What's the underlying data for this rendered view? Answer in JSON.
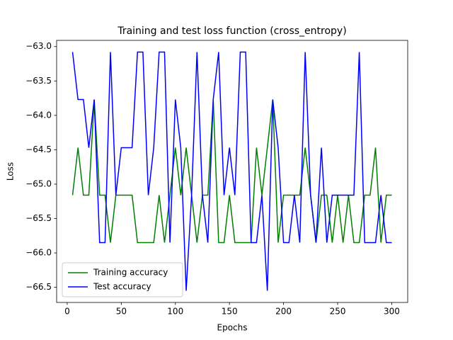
{
  "chart_data": {
    "type": "line",
    "title": "Training and test loss function (cross_entropy)",
    "x_label": "Epochs",
    "y_label": "Loss",
    "x": [
      5,
      10,
      15,
      20,
      25,
      30,
      35,
      40,
      45,
      50,
      55,
      60,
      65,
      70,
      75,
      80,
      85,
      90,
      95,
      100,
      105,
      110,
      115,
      120,
      125,
      130,
      135,
      140,
      145,
      150,
      155,
      160,
      165,
      170,
      175,
      180,
      185,
      190,
      195,
      200,
      205,
      210,
      215,
      220,
      225,
      230,
      235,
      240,
      245,
      250,
      255,
      260,
      265,
      270,
      275,
      280,
      285,
      290,
      295,
      300
    ],
    "series": [
      {
        "name": "Training accuracy",
        "color": "#008000",
        "values": [
          -65.16,
          -64.47,
          -65.16,
          -65.16,
          -63.77,
          -65.16,
          -65.16,
          -65.85,
          -65.16,
          -65.16,
          -65.16,
          -65.16,
          -65.85,
          -65.85,
          -65.85,
          -65.85,
          -65.16,
          -65.85,
          -65.16,
          -64.47,
          -65.16,
          -64.47,
          -65.16,
          -65.85,
          -65.16,
          -65.16,
          -63.77,
          -65.85,
          -65.85,
          -65.16,
          -65.85,
          -65.85,
          -65.85,
          -65.85,
          -64.47,
          -65.16,
          -64.47,
          -63.77,
          -65.85,
          -65.16,
          -65.16,
          -65.16,
          -65.16,
          -64.47,
          -65.16,
          -65.85,
          -65.16,
          -65.16,
          -65.85,
          -65.16,
          -65.85,
          -65.16,
          -65.85,
          -65.85,
          -65.16,
          -65.16,
          -64.47,
          -65.85,
          -65.16,
          -65.16
        ]
      },
      {
        "name": "Test accuracy",
        "color": "#0000ff",
        "values": [
          -63.08,
          -63.77,
          -63.77,
          -64.47,
          -63.77,
          -65.85,
          -65.85,
          -63.08,
          -65.16,
          -64.47,
          -64.47,
          -64.47,
          -63.08,
          -63.08,
          -65.16,
          -64.47,
          -63.08,
          -63.08,
          -65.85,
          -63.77,
          -64.47,
          -66.55,
          -65.16,
          -63.08,
          -65.16,
          -65.85,
          -63.77,
          -63.08,
          -65.16,
          -64.47,
          -65.16,
          -63.08,
          -63.08,
          -65.85,
          -65.85,
          -65.16,
          -66.55,
          -63.77,
          -64.47,
          -65.85,
          -65.85,
          -65.16,
          -65.85,
          -63.08,
          -65.16,
          -65.85,
          -64.47,
          -65.85,
          -65.16,
          -65.16,
          -65.16,
          -65.16,
          -65.16,
          -63.08,
          -65.85,
          -65.85,
          -65.85,
          -65.16,
          -65.85,
          -65.85
        ]
      }
    ],
    "xlim": [
      -9.75,
      314.75
    ],
    "ylim": [
      -66.72,
      -62.91
    ],
    "xticks": [
      0,
      50,
      100,
      150,
      200,
      250,
      300
    ],
    "yticks": [
      {
        "value": -63.0,
        "label": "−63.0"
      },
      {
        "value": -63.5,
        "label": "−63.5"
      },
      {
        "value": -64.0,
        "label": "−64.0"
      },
      {
        "value": -64.5,
        "label": "−64.5"
      },
      {
        "value": -65.0,
        "label": "−65.0"
      },
      {
        "value": -65.5,
        "label": "−65.5"
      },
      {
        "value": -66.0,
        "label": "−66.0"
      },
      {
        "value": -66.5,
        "label": "−66.5"
      }
    ],
    "legend": "lower left",
    "grid": false
  }
}
